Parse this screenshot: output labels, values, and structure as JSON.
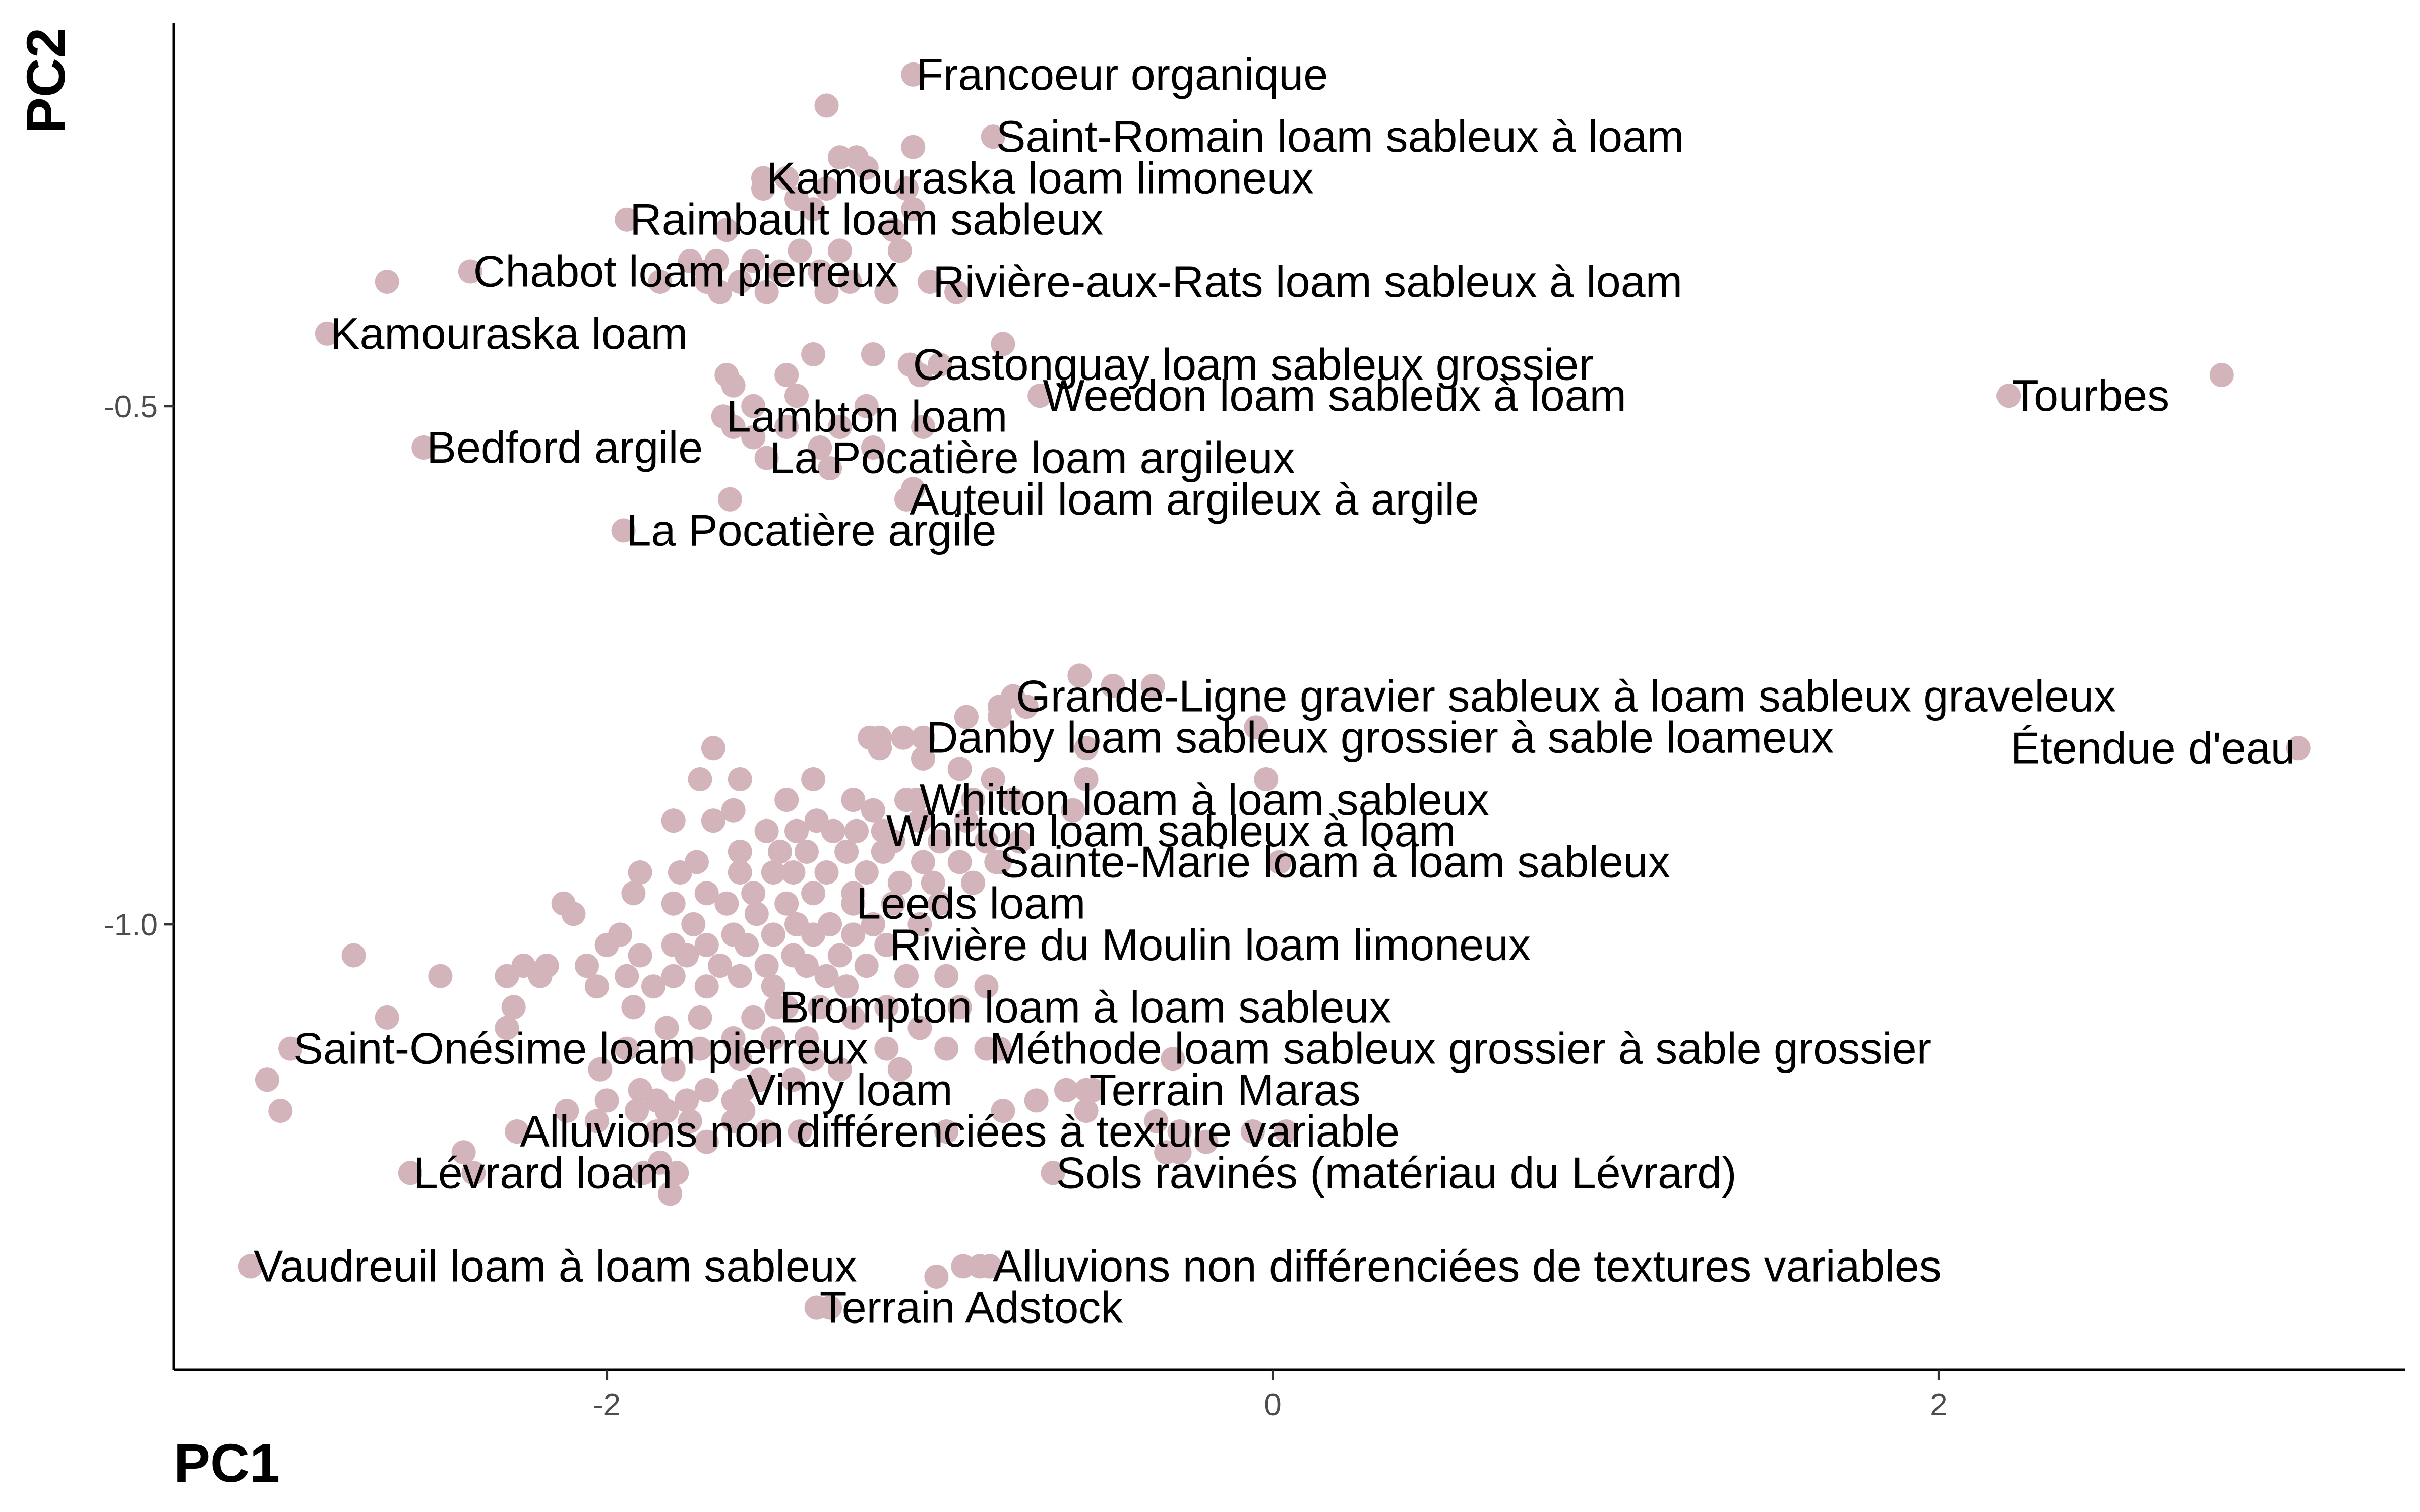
{
  "chart_data": {
    "type": "scatter",
    "xlabel": "PC1",
    "ylabel": "PC2",
    "xlim": [
      -3.3,
      3.4
    ],
    "ylim": [
      -1.43,
      -0.13
    ],
    "grid": false,
    "point_color": "#d3b4bb",
    "x_ticks": [
      -2,
      0,
      2
    ],
    "x_tick_labels": [
      "-2",
      "0",
      "2"
    ],
    "y_ticks": [
      -0.5,
      -1.0
    ],
    "y_tick_labels": [
      "-0.5",
      "-1.0"
    ],
    "labeled_points": [
      {
        "x": -1.08,
        "y": -0.18,
        "label": "Francoeur organique",
        "align": "start"
      },
      {
        "x": -0.84,
        "y": -0.24,
        "label": "Saint-Romain loam sableux à loam",
        "align": "start"
      },
      {
        "x": -1.53,
        "y": -0.28,
        "label": "Kamouraska loam limoneux",
        "align": "start"
      },
      {
        "x": -1.94,
        "y": -0.32,
        "label": "Raimbault loam sableux",
        "align": "start"
      },
      {
        "x": -2.41,
        "y": -0.37,
        "label": "Chabot loam pierreux",
        "align": "start"
      },
      {
        "x": -1.03,
        "y": -0.38,
        "label": "Rivière-aux-Rats loam sableux à loam",
        "align": "start"
      },
      {
        "x": -2.84,
        "y": -0.43,
        "label": "Kamouraska loam",
        "align": "start"
      },
      {
        "x": -0.7,
        "y": -0.49,
        "label": "Weedon loam sableux à loam",
        "align": "start"
      },
      {
        "x": -1.09,
        "y": -0.46,
        "label": "Castonguay loam sableux grossier",
        "align": "start"
      },
      {
        "x": 2.21,
        "y": -0.49,
        "label": "Tourbes",
        "align": "start"
      },
      {
        "x": 2.85,
        "y": -0.47,
        "label": "Tourbes",
        "align": "none"
      },
      {
        "x": -1.65,
        "y": -0.51,
        "label": "Lambton loam",
        "align": "start"
      },
      {
        "x": -2.55,
        "y": -0.54,
        "label": "Bedford argile",
        "align": "start"
      },
      {
        "x": -1.52,
        "y": -0.55,
        "label": "La Pocatière loam argileux",
        "align": "start"
      },
      {
        "x": -1.1,
        "y": -0.59,
        "label": "Auteuil loam argileux à argile",
        "align": "start"
      },
      {
        "x": -1.95,
        "y": -0.62,
        "label": "La Pocatière argile",
        "align": "start"
      },
      {
        "x": -0.78,
        "y": -0.78,
        "label": "Grande-Ligne gravier sableux à loam sableux graveleux",
        "align": "start"
      },
      {
        "x": 3.08,
        "y": -0.83,
        "label": "Étendue d'eau",
        "align": "end"
      },
      {
        "x": -1.05,
        "y": -0.82,
        "label": "Danby loam sableux grossier à sable loameux",
        "align": "start"
      },
      {
        "x": -1.07,
        "y": -0.88,
        "label": "Whitton loam à loam sableux",
        "align": "start"
      },
      {
        "x": -1.17,
        "y": -0.91,
        "label": "Whitton loam sableux à loam",
        "align": "start"
      },
      {
        "x": -0.83,
        "y": -0.94,
        "label": "Sainte-Marie loam à loam sableux",
        "align": "start"
      },
      {
        "x": -1.26,
        "y": -0.98,
        "label": "Leeds loam",
        "align": "start"
      },
      {
        "x": -1.16,
        "y": -1.02,
        "label": "Rivière du Moulin loam limoneux",
        "align": "start"
      },
      {
        "x": -1.49,
        "y": -1.08,
        "label": "Brompton loam à loam sableux",
        "align": "start"
      },
      {
        "x": -2.95,
        "y": -1.12,
        "label": "Saint-Onésime loam pierreux",
        "align": "start"
      },
      {
        "x": -0.86,
        "y": -1.12,
        "label": "Méthode loam sableux grossier à sable grossier",
        "align": "start"
      },
      {
        "x": -1.59,
        "y": -1.16,
        "label": "Vimy loam",
        "align": "start"
      },
      {
        "x": -0.56,
        "y": -1.16,
        "label": "Terrain Maras",
        "align": "start"
      },
      {
        "x": -2.27,
        "y": -1.2,
        "label": "Alluvions non différenciées à texture variable",
        "align": "start"
      },
      {
        "x": -2.59,
        "y": -1.24,
        "label": "Lévrard loam",
        "align": "start"
      },
      {
        "x": -0.66,
        "y": -1.24,
        "label": "Sols ravinés (matériau du Lévrard)",
        "align": "start"
      },
      {
        "x": -3.07,
        "y": -1.33,
        "label": "Vaudreuil loam à loam sableux",
        "align": "start"
      },
      {
        "x": -0.85,
        "y": -1.33,
        "label": "Alluvions non différenciées de textures variables",
        "align": "start"
      },
      {
        "x": -1.37,
        "y": -1.37,
        "label": "Terrain Adstock",
        "align": "start"
      }
    ],
    "points": [
      [
        -1.34,
        -0.21
      ],
      [
        -1.08,
        -0.25
      ],
      [
        -1.25,
        -0.26
      ],
      [
        -1.3,
        -0.26
      ],
      [
        -1.22,
        -0.27
      ],
      [
        -1.1,
        -0.29
      ],
      [
        -1.34,
        -0.29
      ],
      [
        -1.46,
        -0.28
      ],
      [
        -1.53,
        -0.29
      ],
      [
        -1.43,
        -0.3
      ],
      [
        -1.38,
        -0.31
      ],
      [
        -1.08,
        -0.31
      ],
      [
        -1.14,
        -0.33
      ],
      [
        -1.64,
        -0.33
      ],
      [
        -1.67,
        -0.36
      ],
      [
        -1.42,
        -0.35
      ],
      [
        -1.3,
        -0.35
      ],
      [
        -1.12,
        -0.35
      ],
      [
        -1.56,
        -0.36
      ],
      [
        -1.75,
        -0.36
      ],
      [
        -1.7,
        -0.37
      ],
      [
        -1.48,
        -0.37
      ],
      [
        -1.36,
        -0.37
      ],
      [
        -2.66,
        -0.38
      ],
      [
        -1.84,
        -0.38
      ],
      [
        -1.7,
        -0.38
      ],
      [
        -1.6,
        -0.38
      ],
      [
        -1.52,
        -0.39
      ],
      [
        -1.27,
        -0.38
      ],
      [
        -1.03,
        -0.38
      ],
      [
        -0.95,
        -0.39
      ],
      [
        -1.16,
        -0.39
      ],
      [
        -1.66,
        -0.39
      ],
      [
        -1.34,
        -0.39
      ],
      [
        -0.81,
        -0.44
      ],
      [
        -1.38,
        -0.45
      ],
      [
        -1.2,
        -0.45
      ],
      [
        -1.46,
        -0.47
      ],
      [
        -1.62,
        -0.48
      ],
      [
        -1.64,
        -0.47
      ],
      [
        -1.56,
        -0.5
      ],
      [
        -1.43,
        -0.49
      ],
      [
        -1.06,
        -0.47
      ],
      [
        -1.0,
        -0.46
      ],
      [
        -1.22,
        -0.5
      ],
      [
        -1.62,
        -0.52
      ],
      [
        -1.46,
        -0.52
      ],
      [
        -1.3,
        -0.52
      ],
      [
        -1.05,
        -0.52
      ],
      [
        -1.36,
        -0.54
      ],
      [
        -1.33,
        -0.56
      ],
      [
        -1.2,
        -0.54
      ],
      [
        -1.56,
        -0.53
      ],
      [
        -1.08,
        -0.58
      ],
      [
        -1.63,
        -0.59
      ],
      [
        -0.58,
        -0.76
      ],
      [
        -0.36,
        -0.77
      ],
      [
        -0.48,
        -0.77
      ],
      [
        -0.74,
        -0.79
      ],
      [
        -0.82,
        -0.79
      ],
      [
        -0.92,
        -0.8
      ],
      [
        -0.82,
        -0.8
      ],
      [
        -0.05,
        -0.81
      ],
      [
        -1.21,
        -0.82
      ],
      [
        -1.11,
        -0.82
      ],
      [
        -1.18,
        -0.82
      ],
      [
        -0.56,
        -0.83
      ],
      [
        -1.68,
        -0.83
      ],
      [
        -1.18,
        -0.83
      ],
      [
        -0.94,
        -0.85
      ],
      [
        -1.05,
        -0.84
      ],
      [
        -0.02,
        -0.86
      ],
      [
        -1.38,
        -0.86
      ],
      [
        -1.6,
        -0.86
      ],
      [
        -1.72,
        -0.86
      ],
      [
        -0.84,
        -0.86
      ],
      [
        -0.56,
        -0.86
      ],
      [
        -1.46,
        -0.88
      ],
      [
        -1.26,
        -0.88
      ],
      [
        -1.1,
        -0.88
      ],
      [
        -0.9,
        -0.88
      ],
      [
        -0.78,
        -0.88
      ],
      [
        -0.6,
        -0.89
      ],
      [
        -1.62,
        -0.89
      ],
      [
        -1.37,
        -0.9
      ],
      [
        -1.2,
        -0.89
      ],
      [
        -1.06,
        -0.9
      ],
      [
        -0.92,
        -0.9
      ],
      [
        -1.8,
        -0.9
      ],
      [
        -1.68,
        -0.9
      ],
      [
        -1.52,
        -0.91
      ],
      [
        -1.43,
        -0.91
      ],
      [
        -1.32,
        -0.91
      ],
      [
        -1.25,
        -0.91
      ],
      [
        -1.14,
        -0.92
      ],
      [
        -1.0,
        -0.92
      ],
      [
        -0.86,
        -0.92
      ],
      [
        -0.76,
        -0.92
      ],
      [
        -1.6,
        -0.93
      ],
      [
        -1.48,
        -0.93
      ],
      [
        -1.4,
        -0.93
      ],
      [
        -1.28,
        -0.93
      ],
      [
        -1.17,
        -0.93
      ],
      [
        -1.05,
        -0.94
      ],
      [
        -0.94,
        -0.94
      ],
      [
        -0.82,
        -0.94
      ],
      [
        -1.73,
        -0.94
      ],
      [
        0.02,
        -0.94
      ],
      [
        -1.9,
        -0.95
      ],
      [
        -1.78,
        -0.95
      ],
      [
        -1.6,
        -0.95
      ],
      [
        -1.5,
        -0.95
      ],
      [
        -1.44,
        -0.95
      ],
      [
        -1.34,
        -0.95
      ],
      [
        -1.22,
        -0.95
      ],
      [
        -1.12,
        -0.96
      ],
      [
        -1.02,
        -0.96
      ],
      [
        -0.9,
        -0.96
      ],
      [
        -1.92,
        -0.97
      ],
      [
        -1.7,
        -0.97
      ],
      [
        -1.56,
        -0.97
      ],
      [
        -1.38,
        -0.97
      ],
      [
        -1.26,
        -0.97
      ],
      [
        -1.14,
        -0.98
      ],
      [
        -1.0,
        -0.98
      ],
      [
        -2.13,
        -0.98
      ],
      [
        -1.8,
        -0.98
      ],
      [
        -1.64,
        -0.98
      ],
      [
        -1.46,
        -0.98
      ],
      [
        -2.1,
        -0.99
      ],
      [
        -1.55,
        -0.99
      ],
      [
        -1.43,
        -1.0
      ],
      [
        -1.33,
        -1.0
      ],
      [
        -1.2,
        -1.0
      ],
      [
        -1.06,
        -1.0
      ],
      [
        -1.74,
        -1.0
      ],
      [
        -1.62,
        -1.01
      ],
      [
        -1.5,
        -1.01
      ],
      [
        -1.38,
        -1.01
      ],
      [
        -1.26,
        -1.01
      ],
      [
        -1.16,
        -1.02
      ],
      [
        -1.96,
        -1.01
      ],
      [
        -2.0,
        -1.02
      ],
      [
        -1.8,
        -1.02
      ],
      [
        -1.7,
        -1.02
      ],
      [
        -1.58,
        -1.02
      ],
      [
        -1.44,
        -1.03
      ],
      [
        -1.3,
        -1.03
      ],
      [
        -1.9,
        -1.03
      ],
      [
        -1.76,
        -1.03
      ],
      [
        -1.66,
        -1.04
      ],
      [
        -1.52,
        -1.04
      ],
      [
        -1.4,
        -1.04
      ],
      [
        -1.22,
        -1.04
      ],
      [
        -2.76,
        -1.03
      ],
      [
        -2.25,
        -1.04
      ],
      [
        -2.18,
        -1.04
      ],
      [
        -2.06,
        -1.04
      ],
      [
        -1.94,
        -1.05
      ],
      [
        -1.8,
        -1.05
      ],
      [
        -1.6,
        -1.05
      ],
      [
        -1.34,
        -1.05
      ],
      [
        -1.1,
        -1.05
      ],
      [
        -0.98,
        -1.05
      ],
      [
        -2.5,
        -1.05
      ],
      [
        -2.3,
        -1.05
      ],
      [
        -2.2,
        -1.05
      ],
      [
        -2.03,
        -1.06
      ],
      [
        -1.86,
        -1.06
      ],
      [
        -1.7,
        -1.06
      ],
      [
        -1.5,
        -1.06
      ],
      [
        -1.28,
        -1.06
      ],
      [
        -0.86,
        -1.06
      ],
      [
        -2.28,
        -1.08
      ],
      [
        -1.92,
        -1.08
      ],
      [
        -1.46,
        -1.08
      ],
      [
        -1.36,
        -1.08
      ],
      [
        -1.16,
        -1.08
      ],
      [
        -0.94,
        -1.08
      ],
      [
        -1.72,
        -1.09
      ],
      [
        -1.56,
        -1.09
      ],
      [
        -2.66,
        -1.09
      ],
      [
        -2.3,
        -1.1
      ],
      [
        -1.26,
        -1.09
      ],
      [
        -1.06,
        -1.1
      ],
      [
        -1.82,
        -1.1
      ],
      [
        -1.62,
        -1.11
      ],
      [
        -1.5,
        -1.11
      ],
      [
        -1.4,
        -1.11
      ],
      [
        -1.16,
        -1.12
      ],
      [
        -1.94,
        -1.12
      ],
      [
        -1.72,
        -1.12
      ],
      [
        -0.98,
        -1.12
      ],
      [
        -0.82,
        -1.12
      ],
      [
        -2.95,
        -1.12
      ],
      [
        -1.6,
        -1.13
      ],
      [
        -1.38,
        -1.13
      ],
      [
        -1.3,
        -1.14
      ],
      [
        -1.12,
        -1.14
      ],
      [
        -0.3,
        -1.13
      ],
      [
        -2.02,
        -1.14
      ],
      [
        -1.8,
        -1.14
      ],
      [
        -1.54,
        -1.15
      ],
      [
        -1.44,
        -1.15
      ],
      [
        -3.02,
        -1.15
      ],
      [
        -1.9,
        -1.16
      ],
      [
        -1.7,
        -1.16
      ],
      [
        -1.62,
        -1.17
      ],
      [
        -0.62,
        -1.16
      ],
      [
        -0.54,
        -1.16
      ],
      [
        -2.0,
        -1.17
      ],
      [
        -1.85,
        -1.17
      ],
      [
        -1.76,
        -1.17
      ],
      [
        -1.59,
        -1.18
      ],
      [
        -0.71,
        -1.17
      ],
      [
        -1.91,
        -1.18
      ],
      [
        -1.82,
        -1.18
      ],
      [
        -2.12,
        -1.18
      ],
      [
        -0.56,
        -1.18
      ],
      [
        -2.98,
        -1.18
      ],
      [
        -0.81,
        -1.18
      ],
      [
        -1.75,
        -1.19
      ],
      [
        -1.62,
        -1.19
      ],
      [
        -0.35,
        -1.19
      ],
      [
        -2.03,
        -1.19
      ],
      [
        -1.85,
        -1.2
      ],
      [
        -1.52,
        -1.2
      ],
      [
        -1.42,
        -1.2
      ],
      [
        -0.98,
        -1.2
      ],
      [
        -0.28,
        -1.2
      ],
      [
        -0.06,
        -1.2
      ],
      [
        0.04,
        -1.2
      ],
      [
        -2.27,
        -1.2
      ],
      [
        -1.7,
        -1.21
      ],
      [
        -0.2,
        -1.21
      ],
      [
        -2.43,
        -1.22
      ],
      [
        -0.28,
        -1.22
      ],
      [
        -0.32,
        -1.22
      ],
      [
        -1.84,
        -1.23
      ],
      [
        -2.59,
        -1.24
      ],
      [
        -2.4,
        -1.24
      ],
      [
        -1.89,
        -1.24
      ],
      [
        -1.79,
        -1.24
      ],
      [
        -0.66,
        -1.24
      ],
      [
        -1.81,
        -1.26
      ],
      [
        -3.07,
        -1.33
      ],
      [
        -0.85,
        -1.33
      ],
      [
        -0.93,
        -1.33
      ],
      [
        -0.88,
        -1.33
      ],
      [
        -1.01,
        -1.34
      ],
      [
        -1.37,
        -1.37
      ],
      [
        -1.33,
        -1.37
      ]
    ]
  }
}
